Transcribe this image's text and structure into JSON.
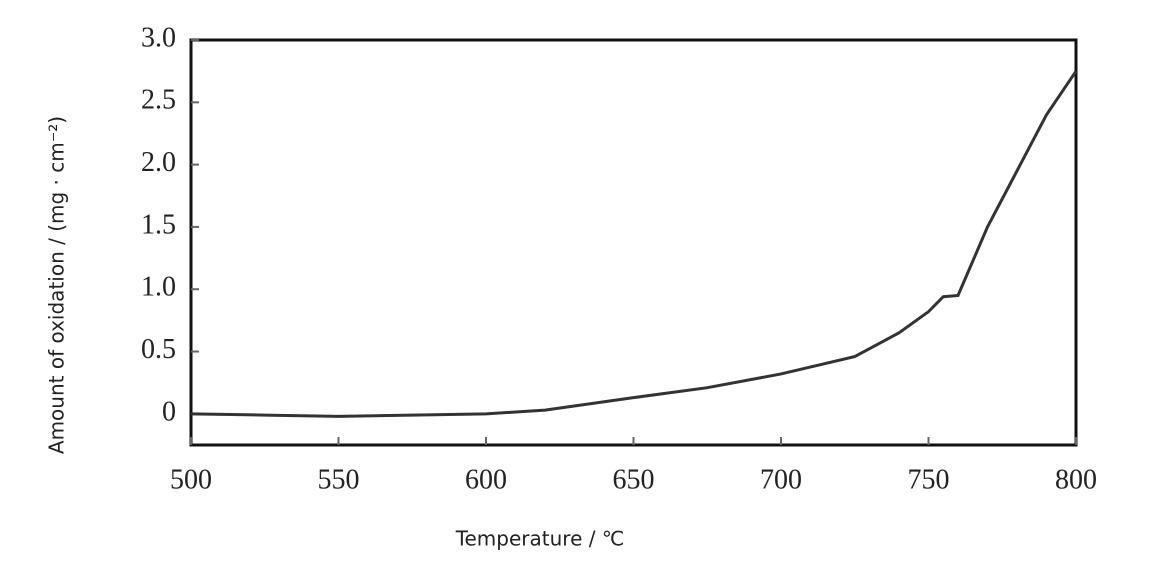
{
  "chart_data": {
    "type": "line",
    "x_label": "Temperature / ℃",
    "y_label": "Amount of oxidation / (mg · cm⁻²)",
    "x": [
      500,
      525,
      550,
      575,
      600,
      620,
      650,
      675,
      700,
      725,
      740,
      750,
      755,
      760,
      770,
      780,
      790,
      800
    ],
    "series": [
      {
        "color": "#333333",
        "values": [
          0,
          -0.01,
          -0.02,
          -0.01,
          0,
          0.03,
          0.13,
          0.21,
          0.32,
          0.46,
          0.65,
          0.82,
          0.94,
          0.95,
          1.5,
          1.95,
          2.4,
          2.75
        ]
      }
    ],
    "xlim": [
      500,
      800
    ],
    "xticks": [
      500,
      550,
      600,
      650,
      700,
      750,
      800
    ],
    "ylim": [
      -0.25,
      3.0
    ],
    "yticks": [
      0,
      0.5,
      {
        "value": 1,
        "label": "1.0"
      },
      1.5,
      {
        "value": 2,
        "label": "2.0"
      },
      2.5,
      {
        "value": 3,
        "label": "3.0"
      }
    ]
  }
}
